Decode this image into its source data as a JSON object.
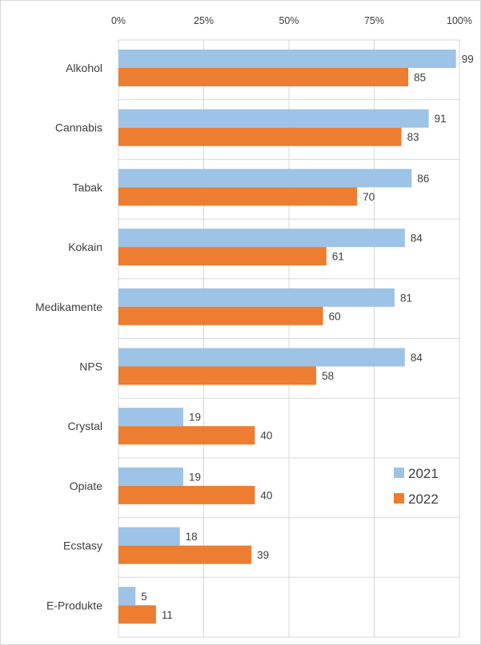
{
  "chart_data": {
    "type": "bar",
    "orientation": "horizontal",
    "categories": [
      "Alkohol",
      "Cannabis",
      "Tabak",
      "Kokain",
      "Medikamente",
      "NPS",
      "Crystal",
      "Opiate",
      "Ecstasy",
      "E-Produkte"
    ],
    "series": [
      {
        "name": "2021",
        "values": [
          99,
          91,
          86,
          84,
          81,
          84,
          19,
          19,
          18,
          5
        ],
        "color": "#9dc3e6"
      },
      {
        "name": "2022",
        "values": [
          85,
          83,
          70,
          61,
          60,
          58,
          40,
          40,
          39,
          11
        ],
        "color": "#ed7d31"
      }
    ],
    "xlim": [
      0,
      100
    ],
    "x_ticks": [
      "0%",
      "25%",
      "50%",
      "75%",
      "100%"
    ],
    "x_axis_position": "top",
    "grid": true,
    "legend_position": "right",
    "data_labels": true
  }
}
